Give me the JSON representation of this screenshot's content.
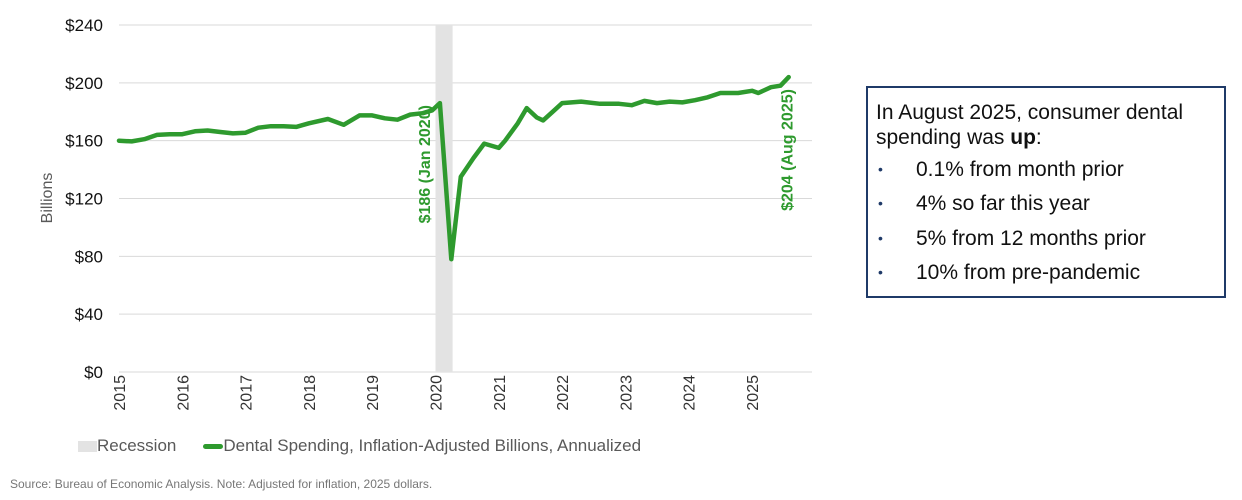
{
  "chart_data": {
    "type": "line",
    "title": "",
    "xlabel": "",
    "ylabel": "Billions",
    "ylim": [
      0,
      240
    ],
    "xlim": [
      2015,
      2025.95
    ],
    "grid": true,
    "yticks": [
      0,
      40,
      80,
      120,
      160,
      200,
      240
    ],
    "ytick_labels": [
      "$0",
      "$40",
      "$80",
      "$120",
      "$160",
      "$200",
      "$240"
    ],
    "xticks": [
      2015,
      2016,
      2017,
      2018,
      2019,
      2020,
      2021,
      2022,
      2023,
      2024,
      2025
    ],
    "xtick_labels": [
      "2015",
      "2016",
      "2017",
      "2018",
      "2019",
      "2020",
      "2021",
      "2022",
      "2023",
      "2024",
      "2025"
    ],
    "recession": {
      "name": "Recession",
      "range": [
        2020.0,
        2020.27
      ],
      "color": "#e3e3e3"
    },
    "series": [
      {
        "name": "Dental Spending, Inflation-Adjusted Billions, Annualized",
        "color": "#2e9a2e",
        "x": [
          2015.0,
          2015.2,
          2015.4,
          2015.6,
          2015.8,
          2016.0,
          2016.2,
          2016.4,
          2016.6,
          2016.8,
          2017.0,
          2017.2,
          2017.4,
          2017.6,
          2017.8,
          2018.0,
          2018.3,
          2018.55,
          2018.8,
          2019.0,
          2019.2,
          2019.4,
          2019.6,
          2019.8,
          2019.95,
          2020.07,
          2020.25,
          2020.4,
          2020.6,
          2020.77,
          2021.0,
          2021.1,
          2021.3,
          2021.44,
          2021.6,
          2021.7,
          2021.9,
          2022.0,
          2022.3,
          2022.6,
          2022.9,
          2023.1,
          2023.3,
          2023.5,
          2023.7,
          2023.9,
          2024.1,
          2024.3,
          2024.5,
          2024.78,
          2025.0,
          2025.1,
          2025.3,
          2025.45,
          2025.58
        ],
        "values": [
          160,
          159.5,
          161,
          164,
          164.5,
          164.5,
          166.5,
          167,
          166,
          165,
          165.5,
          169,
          170,
          170,
          169.5,
          172,
          175,
          171,
          177.5,
          177.5,
          175.5,
          174.5,
          178,
          179,
          181,
          186,
          78,
          135,
          148,
          158,
          155,
          160,
          172,
          182.5,
          176,
          174,
          182,
          186,
          187,
          185.5,
          185.5,
          184.5,
          187.5,
          186,
          187,
          186.5,
          188,
          190,
          193,
          193,
          194.5,
          193,
          197,
          198,
          204
        ]
      }
    ],
    "annotations": [
      {
        "text": "$186 (Jan 2020)",
        "x": 2020.07,
        "y": 186
      },
      {
        "text": "$204 (Aug 2025)",
        "x": 2025.58,
        "y": 204
      }
    ],
    "legend_position": "bottom"
  },
  "callout": {
    "intro_prefix": "In August 2025, consumer dental spending was ",
    "intro_bold": "up",
    "intro_suffix": ":",
    "bullet": "•",
    "items": [
      "0.1% from month prior",
      "4% so far this year",
      "5% from 12 months prior",
      "10% from pre-pandemic"
    ]
  },
  "source": "Source: Bureau of Economic Analysis. Note: Adjusted for inflation, 2025 dollars."
}
